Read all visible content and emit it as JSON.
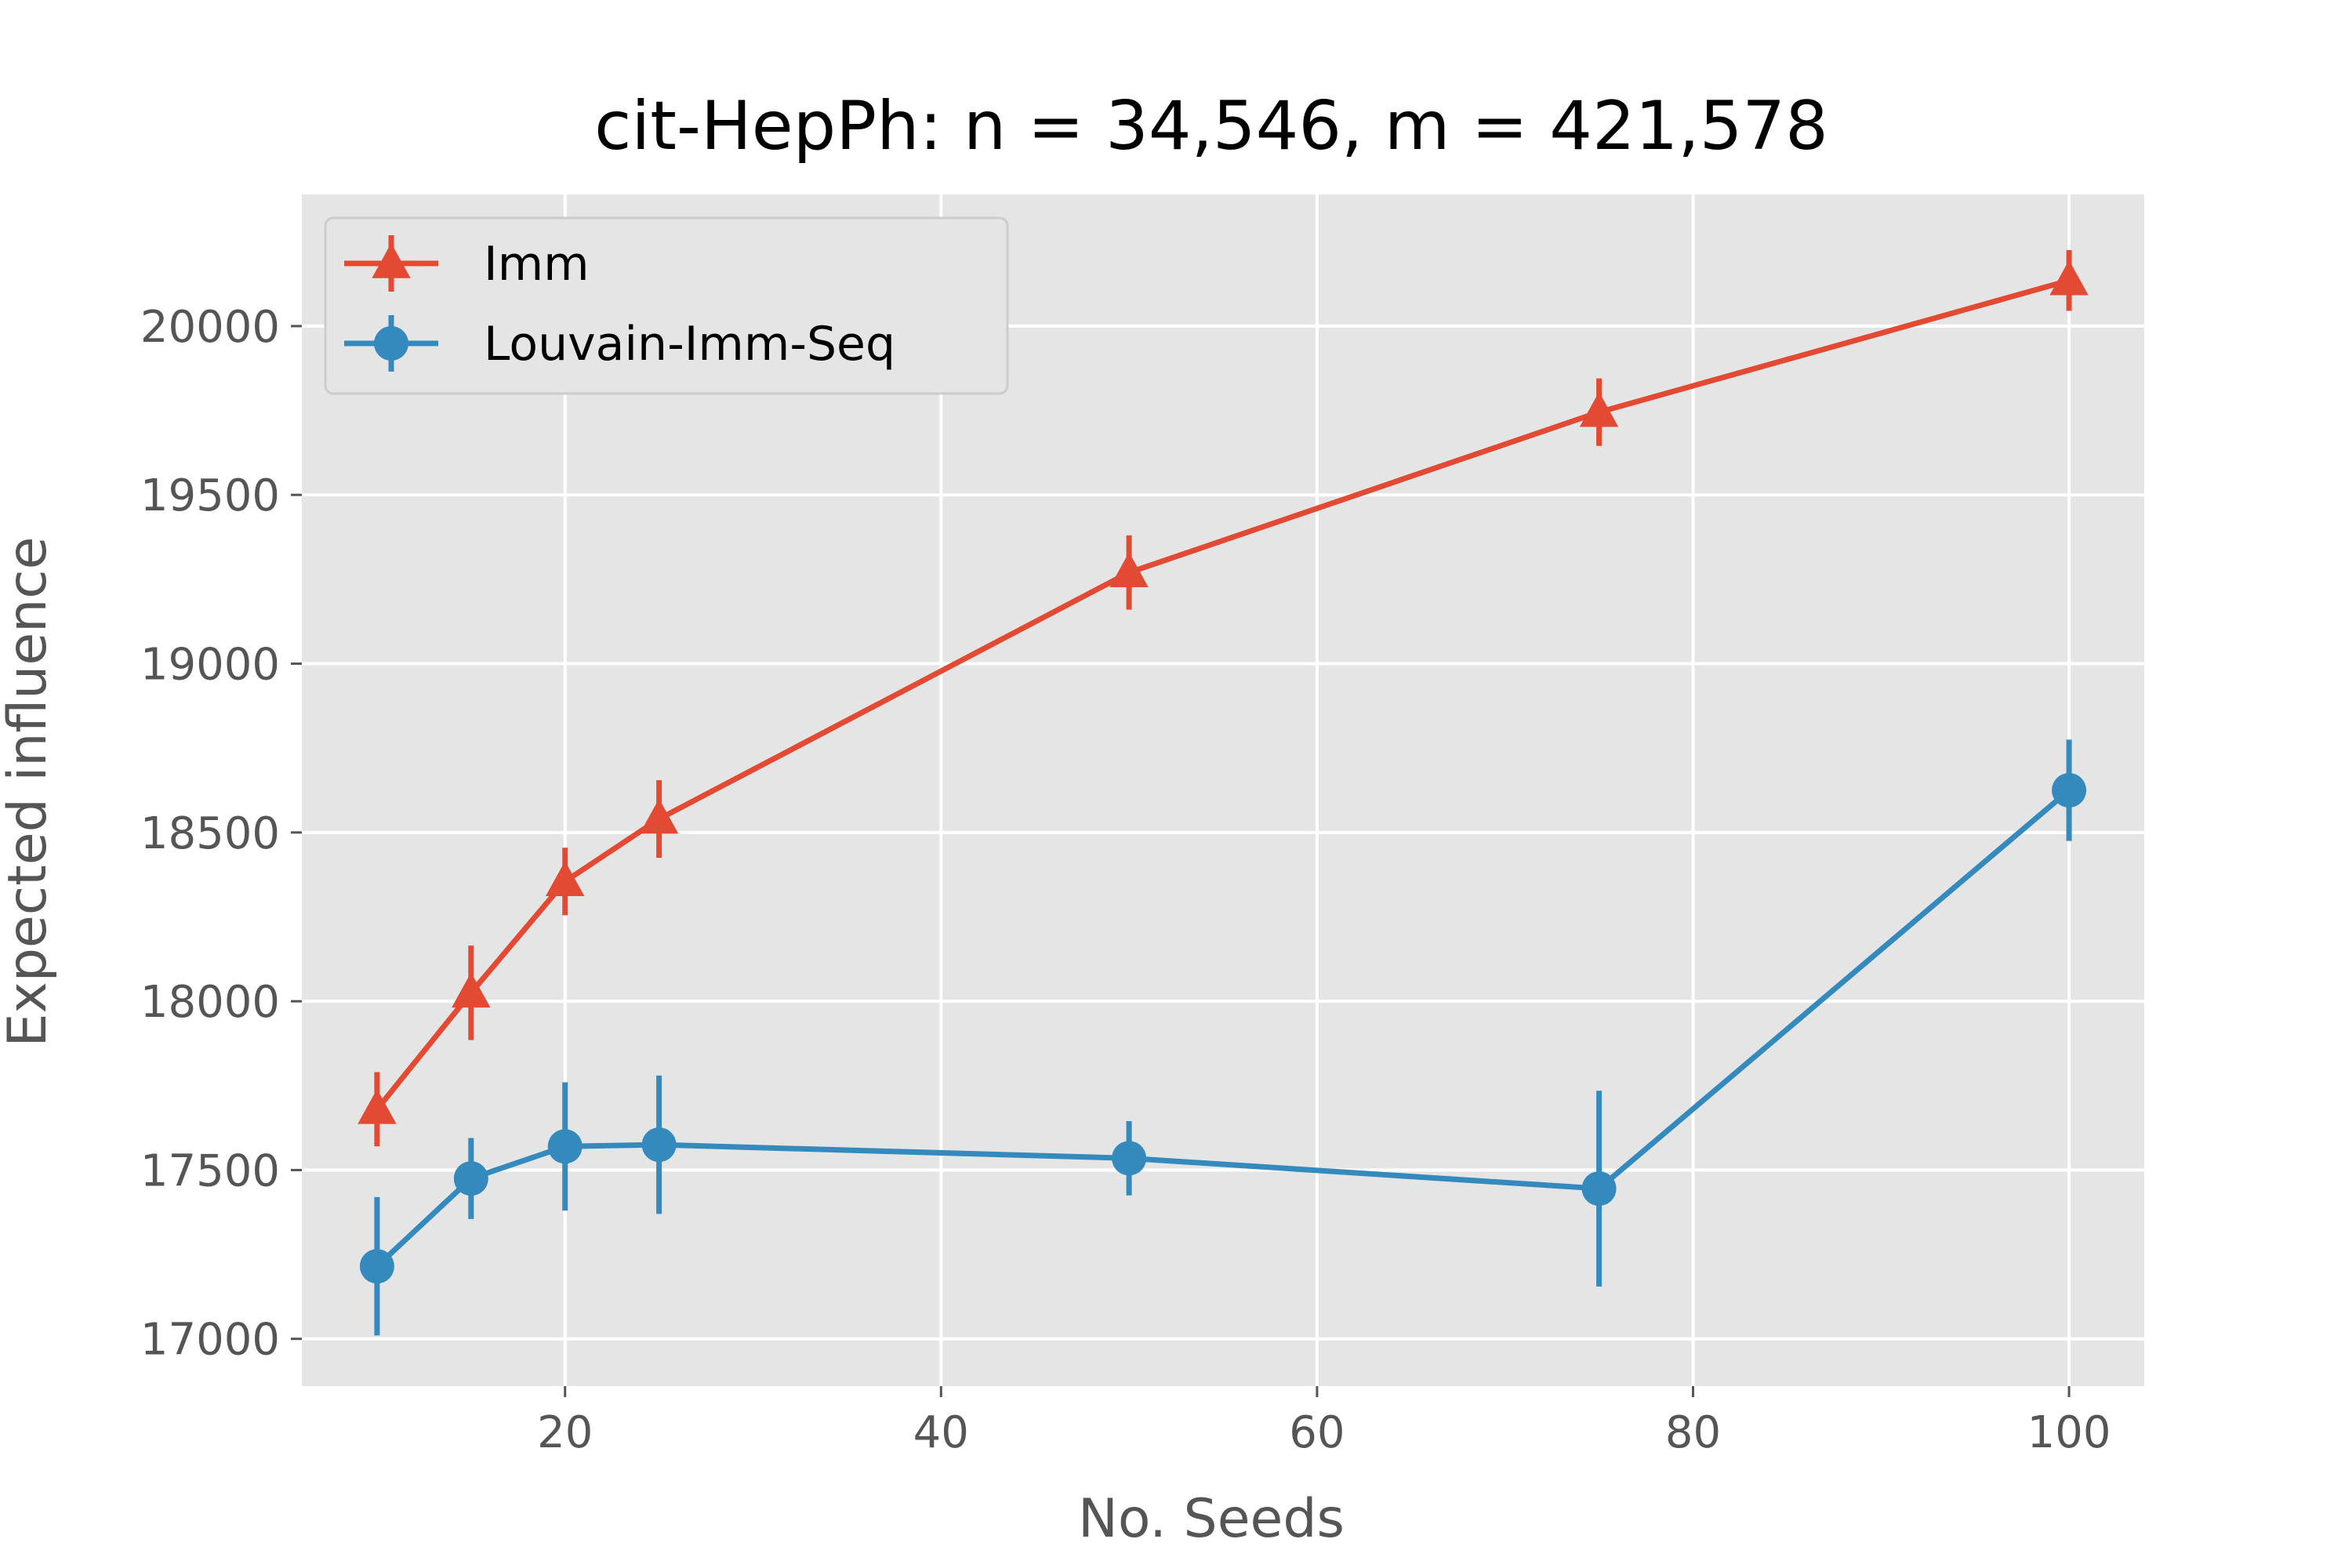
{
  "chart_data": {
    "type": "line",
    "title": "cit-HepPh: n = 34,546, m = 421,578",
    "xlabel": "No. Seeds",
    "ylabel": "Expected influence",
    "xlim": [
      6,
      104
    ],
    "ylim": [
      16860,
      20390
    ],
    "xticks": [
      20,
      40,
      60,
      80,
      100
    ],
    "yticks": [
      17000,
      17500,
      18000,
      18500,
      19000,
      19500,
      20000
    ],
    "grid": true,
    "legend_position": "top-left",
    "x": [
      10,
      15,
      20,
      25,
      50,
      75,
      100
    ],
    "series": [
      {
        "name": "Imm",
        "color": "#E24A33",
        "marker": "triangle",
        "values": [
          17680,
          18025,
          18355,
          18540,
          19270,
          19745,
          20135
        ],
        "errors": [
          110,
          140,
          100,
          115,
          110,
          100,
          90
        ]
      },
      {
        "name": "Louvain-Imm-Seq",
        "color": "#348ABD",
        "marker": "circle",
        "values": [
          17215,
          17475,
          17570,
          17575,
          17535,
          17445,
          18625
        ],
        "errors": [
          205,
          120,
          190,
          205,
          110,
          290,
          150
        ]
      }
    ]
  }
}
